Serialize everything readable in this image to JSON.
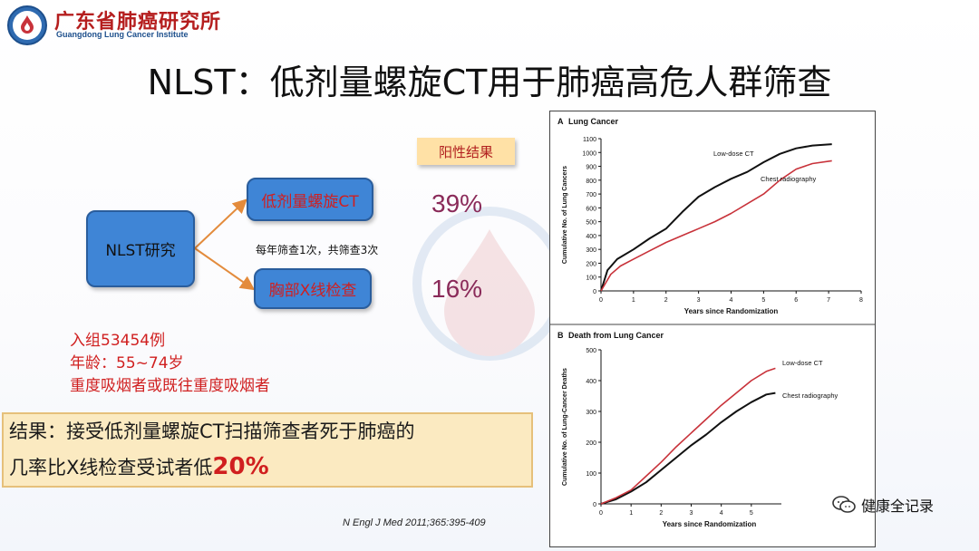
{
  "header": {
    "org_name_cn": "广东省肺癌研究所",
    "org_name_en": "Guangdong Lung Cancer Institute",
    "title": "NLST：低剂量螺旋CT用于肺癌高危人群筛查"
  },
  "diagram": {
    "study_label": "NLST研究",
    "arm_ct": "低剂量螺旋CT",
    "arm_xray": "胸部X线检查",
    "frequency": "每年筛查1次，共筛查3次",
    "positive_label": "阳性结果",
    "ct_positive": "39%",
    "xray_positive": "16%"
  },
  "enrollment": {
    "line1": "入组53454例",
    "line2": "年龄：55~74岁",
    "line3": "重度吸烟者或既往重度吸烟者"
  },
  "result": {
    "line1": "结果：接受低剂量螺旋CT扫描筛查者死于肺癌的",
    "line2_prefix": "几率比X线检查受试者低",
    "line2_value": "20%"
  },
  "citation": "N Engl J Med 2011;365:395-409",
  "watermark": "健康全记录",
  "colors": {
    "ct_line": "#111111",
    "xray_line": "#c8323a",
    "box_fill": "#3f85d6",
    "accent_red": "#d01f1f"
  },
  "chart_data": [
    {
      "type": "line",
      "panel_label": "A",
      "title": "Lung Cancer",
      "xlabel": "Years since Randomization",
      "ylabel": "Cumulative No. of Lung Cancers",
      "xlim": [
        0,
        8
      ],
      "ylim": [
        0,
        1100
      ],
      "xticks": [
        "0",
        "1",
        "2",
        "3",
        "4",
        "5",
        "6",
        "7",
        "8"
      ],
      "yticks": [
        "0",
        "100",
        "200",
        "300",
        "400",
        "500",
        "600",
        "700",
        "800",
        "900",
        "1000",
        "1100"
      ],
      "series": [
        {
          "name": "Low-dose CT",
          "x": [
            0,
            0.2,
            0.5,
            1,
            1.5,
            2,
            2.5,
            3,
            3.5,
            4,
            4.5,
            5,
            5.5,
            6,
            6.5,
            7.1
          ],
          "y": [
            0,
            150,
            230,
            300,
            380,
            450,
            570,
            680,
            750,
            810,
            860,
            930,
            990,
            1030,
            1050,
            1060
          ]
        },
        {
          "name": "Chest radiography",
          "x": [
            0,
            0.3,
            0.6,
            1,
            1.5,
            2,
            2.5,
            3,
            3.5,
            4,
            4.5,
            5,
            5.5,
            6,
            6.5,
            7.1
          ],
          "y": [
            0,
            120,
            180,
            230,
            290,
            350,
            400,
            450,
            500,
            560,
            630,
            700,
            800,
            880,
            920,
            940
          ]
        }
      ]
    },
    {
      "type": "line",
      "panel_label": "B",
      "title": "Death from Lung Cancer",
      "xlabel": "Years since Randomization",
      "ylabel": "Cumulative No. of Lung-Cancer Deaths",
      "xlim": [
        0,
        6
      ],
      "ylim": [
        0,
        500
      ],
      "xticks": [
        "0",
        "1",
        "2",
        "3",
        "4",
        "5"
      ],
      "yticks": [
        "0",
        "100",
        "200",
        "300",
        "400",
        "500"
      ],
      "series": [
        {
          "name": "Low-dose CT",
          "x": [
            0,
            0.5,
            1,
            1.5,
            2,
            2.5,
            3,
            3.5,
            4,
            4.5,
            5,
            5.5,
            5.8
          ],
          "y": [
            0,
            15,
            40,
            70,
            110,
            150,
            190,
            225,
            265,
            300,
            330,
            355,
            360
          ]
        },
        {
          "name": "Chest radiography",
          "x": [
            0,
            0.5,
            1,
            1.5,
            2,
            2.5,
            3,
            3.5,
            4,
            4.5,
            5,
            5.5,
            5.8
          ],
          "y": [
            0,
            20,
            45,
            90,
            135,
            185,
            230,
            275,
            320,
            360,
            400,
            430,
            440
          ]
        }
      ]
    }
  ]
}
